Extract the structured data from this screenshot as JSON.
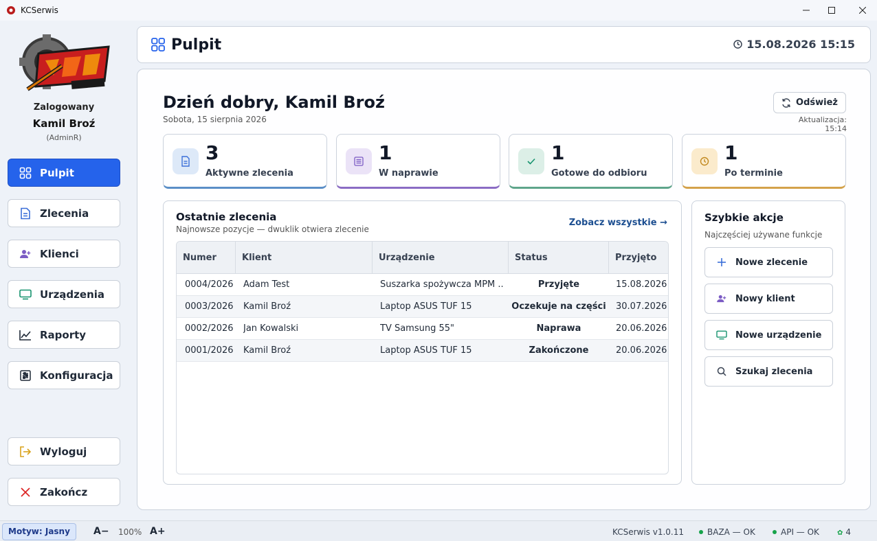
{
  "window": {
    "title": "KCSerwis"
  },
  "sidebar": {
    "logged_label": "Zalogowany",
    "user_name": "Kamil Broź",
    "user_role": "(AdminR)",
    "items": [
      {
        "label": "Pulpit",
        "icon": "grid-icon"
      },
      {
        "label": "Zlecenia",
        "icon": "document-icon"
      },
      {
        "label": "Klienci",
        "icon": "user-add-icon"
      },
      {
        "label": "Urządzenia",
        "icon": "monitor-icon"
      },
      {
        "label": "Raporty",
        "icon": "chart-icon"
      },
      {
        "label": "Konfiguracja",
        "icon": "sliders-icon"
      }
    ],
    "logout": "Wyloguj",
    "quit": "Zakończ"
  },
  "header": {
    "title": "Pulpit",
    "clock": "15.08.2026 15:15"
  },
  "main": {
    "greeting": "Dzień dobry, Kamil Broź",
    "date": "Sobota, 15 sierpnia 2026",
    "refresh": "Odśwież",
    "updated": "Aktualizacja: 15:14",
    "stats": [
      {
        "value": "3",
        "label": "Aktywne zlecenia",
        "color": "#5b8fc7"
      },
      {
        "value": "1",
        "label": "W naprawie",
        "color": "#8b6cc4"
      },
      {
        "value": "1",
        "label": "Gotowe do odbioru",
        "color": "#5fa58b"
      },
      {
        "value": "1",
        "label": "Po terminie",
        "color": "#d4a24a"
      }
    ],
    "recent": {
      "title": "Ostatnie zlecenia",
      "subtitle": "Najnowsze pozycje — dwuklik otwiera zlecenie",
      "see_all": "Zobacz wszystkie →",
      "columns": [
        "Numer",
        "Klient",
        "Urządzenie",
        "Status",
        "Przyjęto"
      ],
      "rows": [
        {
          "number": "0004/2026",
          "client": "Adam Test",
          "device": "Suszarka spożywcza MPM ...",
          "status": "Przyjęte",
          "date": "15.08.2026"
        },
        {
          "number": "0003/2026",
          "client": "Kamil Broź",
          "device": "Laptop ASUS TUF 15",
          "status": "Oczekuje na części",
          "date": "30.07.2026"
        },
        {
          "number": "0002/2026",
          "client": "Jan Kowalski",
          "device": "TV Samsung 55\"",
          "status": "Naprawa",
          "date": "20.06.2026"
        },
        {
          "number": "0001/2026",
          "client": "Kamil Broź",
          "device": "Laptop ASUS TUF 15",
          "status": "Zakończone",
          "date": "20.06.2026"
        }
      ]
    },
    "quick": {
      "title": "Szybkie akcje",
      "subtitle": "Najczęściej używane funkcje",
      "actions": [
        {
          "label": "Nowe zlecenie",
          "icon": "plus-icon"
        },
        {
          "label": "Nowy klient",
          "icon": "user-add-icon"
        },
        {
          "label": "Nowe urządzenie",
          "icon": "monitor-icon"
        },
        {
          "label": "Szukaj zlecenia",
          "icon": "search-icon"
        }
      ]
    }
  },
  "statusbar": {
    "theme": "Motyw: Jasny",
    "font_decrease": "A−",
    "zoom": "100%",
    "font_increase": "A+",
    "version": "KCSerwis v1.0.11",
    "db": "BAZA — OK",
    "api": "API — OK",
    "notifications": "4"
  }
}
